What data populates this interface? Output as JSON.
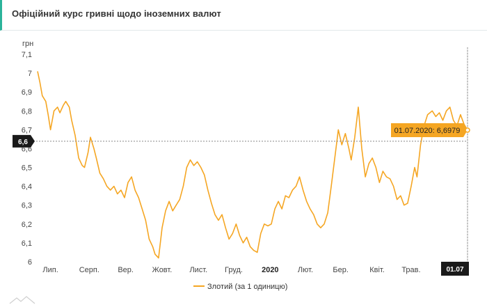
{
  "header": {
    "title": "Офіційний курс гривні щодо іноземних валют"
  },
  "colors": {
    "series": "#f5a623",
    "accent": "#2bb39a",
    "tooltip_bg": "#f5a623",
    "flag_bg": "#1a1a1a"
  },
  "chart_data": {
    "type": "line",
    "ylabel": "грн",
    "ylim": [
      6,
      7.1
    ],
    "yticks": [
      "6",
      "6,1",
      "6,2",
      "6,3",
      "6,4",
      "6,5",
      "6,6",
      "6,7",
      "6,8",
      "6,9",
      "7",
      "7,1"
    ],
    "xticks": [
      "Лип.",
      "Серп.",
      "Вер.",
      "Жовт.",
      "Лист.",
      "Груд.",
      "2020",
      "Лют.",
      "Бер.",
      "Квіт.",
      "Трав."
    ],
    "xlim": [
      "2019-07-01",
      "2020-07-01"
    ],
    "series": [
      {
        "name": "Злотий (за 1 одиницю)",
        "points": [
          [
            "2019-07-01",
            7.01
          ],
          [
            "2019-07-03",
            6.95
          ],
          [
            "2019-07-05",
            6.88
          ],
          [
            "2019-07-08",
            6.85
          ],
          [
            "2019-07-10",
            6.78
          ],
          [
            "2019-07-12",
            6.7
          ],
          [
            "2019-07-15",
            6.8
          ],
          [
            "2019-07-18",
            6.82
          ],
          [
            "2019-07-20",
            6.79
          ],
          [
            "2019-07-23",
            6.83
          ],
          [
            "2019-07-25",
            6.85
          ],
          [
            "2019-07-28",
            6.82
          ],
          [
            "2019-07-30",
            6.75
          ],
          [
            "2019-08-02",
            6.67
          ],
          [
            "2019-08-05",
            6.55
          ],
          [
            "2019-08-08",
            6.51
          ],
          [
            "2019-08-10",
            6.5
          ],
          [
            "2019-08-13",
            6.58
          ],
          [
            "2019-08-15",
            6.66
          ],
          [
            "2019-08-18",
            6.6
          ],
          [
            "2019-08-20",
            6.55
          ],
          [
            "2019-08-23",
            6.47
          ],
          [
            "2019-08-26",
            6.44
          ],
          [
            "2019-08-29",
            6.4
          ],
          [
            "2019-09-01",
            6.38
          ],
          [
            "2019-09-04",
            6.4
          ],
          [
            "2019-09-07",
            6.36
          ],
          [
            "2019-09-10",
            6.38
          ],
          [
            "2019-09-13",
            6.34
          ],
          [
            "2019-09-16",
            6.42
          ],
          [
            "2019-09-19",
            6.45
          ],
          [
            "2019-09-22",
            6.38
          ],
          [
            "2019-09-25",
            6.34
          ],
          [
            "2019-09-28",
            6.28
          ],
          [
            "2019-10-01",
            6.22
          ],
          [
            "2019-10-04",
            6.12
          ],
          [
            "2019-10-07",
            6.08
          ],
          [
            "2019-10-09",
            6.04
          ],
          [
            "2019-10-12",
            6.02
          ],
          [
            "2019-10-15",
            6.18
          ],
          [
            "2019-10-18",
            6.27
          ],
          [
            "2019-10-21",
            6.32
          ],
          [
            "2019-10-24",
            6.27
          ],
          [
            "2019-10-27",
            6.3
          ],
          [
            "2019-10-30",
            6.33
          ],
          [
            "2019-11-02",
            6.4
          ],
          [
            "2019-11-05",
            6.5
          ],
          [
            "2019-11-08",
            6.54
          ],
          [
            "2019-11-11",
            6.51
          ],
          [
            "2019-11-14",
            6.53
          ],
          [
            "2019-11-17",
            6.5
          ],
          [
            "2019-11-20",
            6.46
          ],
          [
            "2019-11-23",
            6.38
          ],
          [
            "2019-11-26",
            6.31
          ],
          [
            "2019-11-29",
            6.25
          ],
          [
            "2019-12-02",
            6.22
          ],
          [
            "2019-12-05",
            6.25
          ],
          [
            "2019-12-08",
            6.18
          ],
          [
            "2019-12-11",
            6.12
          ],
          [
            "2019-12-14",
            6.15
          ],
          [
            "2019-12-17",
            6.2
          ],
          [
            "2019-12-20",
            6.14
          ],
          [
            "2019-12-23",
            6.1
          ],
          [
            "2019-12-26",
            6.13
          ],
          [
            "2019-12-29",
            6.08
          ],
          [
            "2020-01-01",
            6.06
          ],
          [
            "2020-01-04",
            6.05
          ],
          [
            "2020-01-07",
            6.15
          ],
          [
            "2020-01-10",
            6.2
          ],
          [
            "2020-01-13",
            6.19
          ],
          [
            "2020-01-16",
            6.2
          ],
          [
            "2020-01-19",
            6.28
          ],
          [
            "2020-01-22",
            6.32
          ],
          [
            "2020-01-25",
            6.28
          ],
          [
            "2020-01-28",
            6.35
          ],
          [
            "2020-01-31",
            6.34
          ],
          [
            "2020-02-03",
            6.38
          ],
          [
            "2020-02-06",
            6.4
          ],
          [
            "2020-02-09",
            6.45
          ],
          [
            "2020-02-12",
            6.38
          ],
          [
            "2020-02-15",
            6.32
          ],
          [
            "2020-02-18",
            6.28
          ],
          [
            "2020-02-21",
            6.25
          ],
          [
            "2020-02-24",
            6.2
          ],
          [
            "2020-02-27",
            6.18
          ],
          [
            "2020-03-01",
            6.2
          ],
          [
            "2020-03-04",
            6.26
          ],
          [
            "2020-03-07",
            6.4
          ],
          [
            "2020-03-10",
            6.55
          ],
          [
            "2020-03-13",
            6.7
          ],
          [
            "2020-03-16",
            6.62
          ],
          [
            "2020-03-19",
            6.68
          ],
          [
            "2020-03-22",
            6.6
          ],
          [
            "2020-03-24",
            6.54
          ],
          [
            "2020-03-27",
            6.66
          ],
          [
            "2020-03-30",
            6.82
          ],
          [
            "2020-04-02",
            6.6
          ],
          [
            "2020-04-05",
            6.45
          ],
          [
            "2020-04-08",
            6.52
          ],
          [
            "2020-04-11",
            6.55
          ],
          [
            "2020-04-14",
            6.5
          ],
          [
            "2020-04-17",
            6.42
          ],
          [
            "2020-04-20",
            6.48
          ],
          [
            "2020-04-23",
            6.45
          ],
          [
            "2020-04-26",
            6.44
          ],
          [
            "2020-04-29",
            6.4
          ],
          [
            "2020-05-02",
            6.33
          ],
          [
            "2020-05-05",
            6.35
          ],
          [
            "2020-05-08",
            6.3
          ],
          [
            "2020-05-11",
            6.31
          ],
          [
            "2020-05-14",
            6.4
          ],
          [
            "2020-05-17",
            6.5
          ],
          [
            "2020-05-19",
            6.45
          ],
          [
            "2020-05-22",
            6.62
          ],
          [
            "2020-05-25",
            6.72
          ],
          [
            "2020-05-28",
            6.78
          ],
          [
            "2020-06-01",
            6.8
          ],
          [
            "2020-06-04",
            6.77
          ],
          [
            "2020-06-07",
            6.79
          ],
          [
            "2020-06-10",
            6.75
          ],
          [
            "2020-06-13",
            6.8
          ],
          [
            "2020-06-16",
            6.82
          ],
          [
            "2020-06-19",
            6.75
          ],
          [
            "2020-06-22",
            6.72
          ],
          [
            "2020-06-25",
            6.78
          ],
          [
            "2020-06-28",
            6.73
          ],
          [
            "2020-07-01",
            6.6979
          ]
        ]
      }
    ],
    "crosshair": {
      "y_label": "6,6",
      "x_label": "01.07"
    },
    "tooltip": "01.07.2020: 6,6979",
    "legend_position": "bottom-center",
    "grid": false
  }
}
